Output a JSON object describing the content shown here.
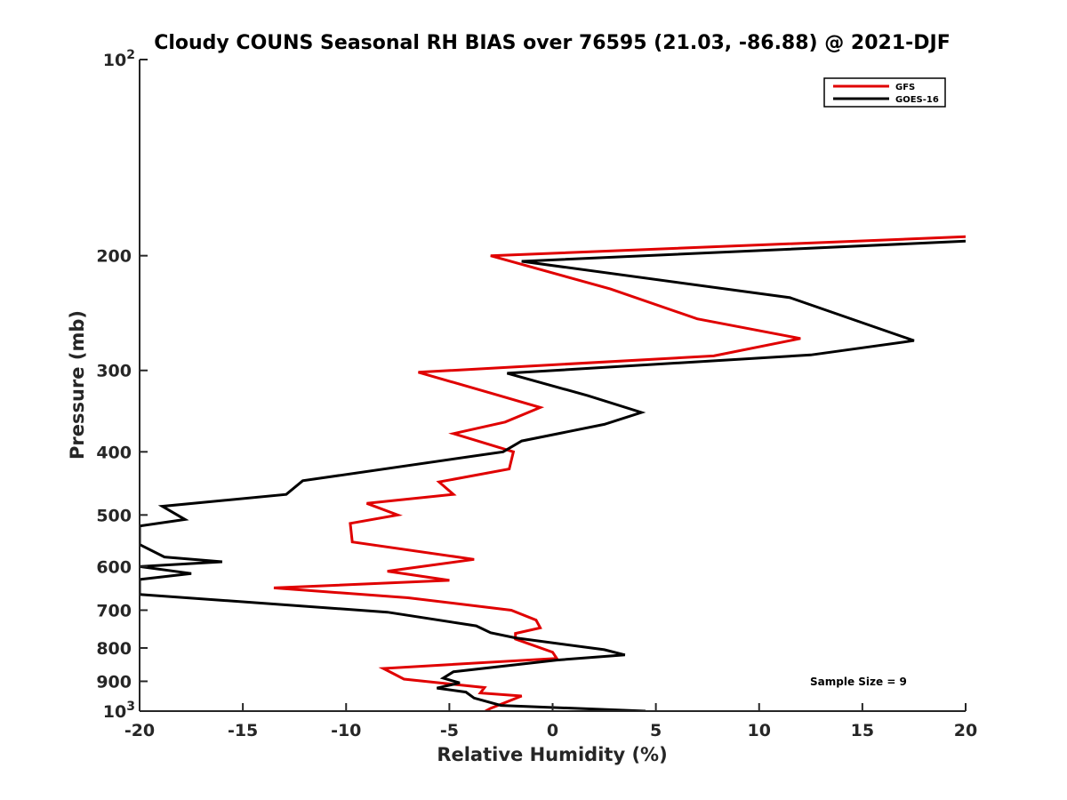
{
  "chart_data": {
    "type": "line",
    "title": "Cloudy COUNS Seasonal RH BIAS over 76595 (21.03, -86.88) @ 2021-DJF",
    "xlabel": "Relative Humidity (%)",
    "ylabel": "Pressure (mb)",
    "xlim": [
      -20,
      20
    ],
    "ylim": [
      100,
      1000
    ],
    "yscale": "log",
    "y_reversed": true,
    "xticks": [
      -20,
      -15,
      -10,
      -5,
      0,
      5,
      10,
      15,
      20
    ],
    "xtick_labels": [
      "-20",
      "-15",
      "-10",
      "-5",
      "0",
      "5",
      "10",
      "15",
      "20"
    ],
    "yticks": [
      {
        "value": 100,
        "label": "10",
        "sup": "2"
      },
      {
        "value": 200,
        "label": "200",
        "sup": ""
      },
      {
        "value": 300,
        "label": "300",
        "sup": ""
      },
      {
        "value": 400,
        "label": "400",
        "sup": ""
      },
      {
        "value": 500,
        "label": "500",
        "sup": ""
      },
      {
        "value": 600,
        "label": "600",
        "sup": ""
      },
      {
        "value": 700,
        "label": "700",
        "sup": ""
      },
      {
        "value": 800,
        "label": "800",
        "sup": ""
      },
      {
        "value": 900,
        "label": "900",
        "sup": ""
      },
      {
        "value": 1000,
        "label": "10",
        "sup": "3"
      }
    ],
    "grid": false,
    "legend_position": "top-right",
    "annotation": "Sample Size = 9",
    "series": [
      {
        "name": "GFS",
        "color": "#e00000",
        "points": [
          [
            20,
            187
          ],
          [
            -3,
            200
          ],
          [
            2.8,
            225
          ],
          [
            7,
            250
          ],
          [
            12,
            268
          ],
          [
            7.8,
            285
          ],
          [
            -6.5,
            302
          ],
          [
            -3,
            325
          ],
          [
            -0.6,
            342
          ],
          [
            -2.3,
            360
          ],
          [
            -4.8,
            375
          ],
          [
            -1.9,
            400
          ],
          [
            -2.1,
            425
          ],
          [
            -5.5,
            445
          ],
          [
            -4.8,
            465
          ],
          [
            -9,
            480
          ],
          [
            -7.5,
            500
          ],
          [
            -9.8,
            515
          ],
          [
            -9.7,
            550
          ],
          [
            -3.8,
            585
          ],
          [
            -8,
            610
          ],
          [
            -5,
            630
          ],
          [
            -13.5,
            647
          ],
          [
            -7,
            670
          ],
          [
            -2,
            700
          ],
          [
            -0.8,
            725
          ],
          [
            -0.6,
            745
          ],
          [
            -1.8,
            760
          ],
          [
            -1.8,
            775
          ],
          [
            0,
            812
          ],
          [
            0.2,
            830
          ],
          [
            -8.2,
            860
          ],
          [
            -7.2,
            893
          ],
          [
            -3.3,
            920
          ],
          [
            -3.5,
            938
          ],
          [
            -1.5,
            948
          ],
          [
            -3,
            990
          ],
          [
            -3.5,
            1010
          ]
        ]
      },
      {
        "name": "GOES-16",
        "color": "#000000",
        "points": [
          [
            20,
            190
          ],
          [
            -1.5,
            204
          ],
          [
            11.5,
            232
          ],
          [
            17.5,
            270
          ],
          [
            12.5,
            284
          ],
          [
            -2.2,
            303
          ],
          [
            1.7,
            328
          ],
          [
            4.3,
            348
          ],
          [
            2.5,
            363
          ],
          [
            -1.5,
            385
          ],
          [
            -2.4,
            400
          ],
          [
            -12.1,
            443
          ],
          [
            -12.9,
            465
          ],
          [
            -18.9,
            485
          ],
          [
            -17.8,
            508
          ],
          [
            -20,
            520
          ],
          [
            -20,
            555
          ],
          [
            -18.8,
            580
          ],
          [
            -16,
            590
          ],
          [
            -20,
            600
          ],
          [
            -17.5,
            615
          ],
          [
            -20,
            628
          ],
          [
            -20,
            662
          ],
          [
            -8,
            705
          ],
          [
            -3.7,
            740
          ],
          [
            -3,
            758
          ],
          [
            -1.8,
            772
          ],
          [
            2.5,
            805
          ],
          [
            3.5,
            820
          ],
          [
            0.2,
            835
          ],
          [
            -4.8,
            870
          ],
          [
            -5.3,
            890
          ],
          [
            -4.5,
            905
          ],
          [
            -5.6,
            922
          ],
          [
            -4.2,
            935
          ],
          [
            -3.8,
            955
          ],
          [
            -2.5,
            980
          ],
          [
            4.5,
            1000
          ]
        ]
      }
    ]
  }
}
